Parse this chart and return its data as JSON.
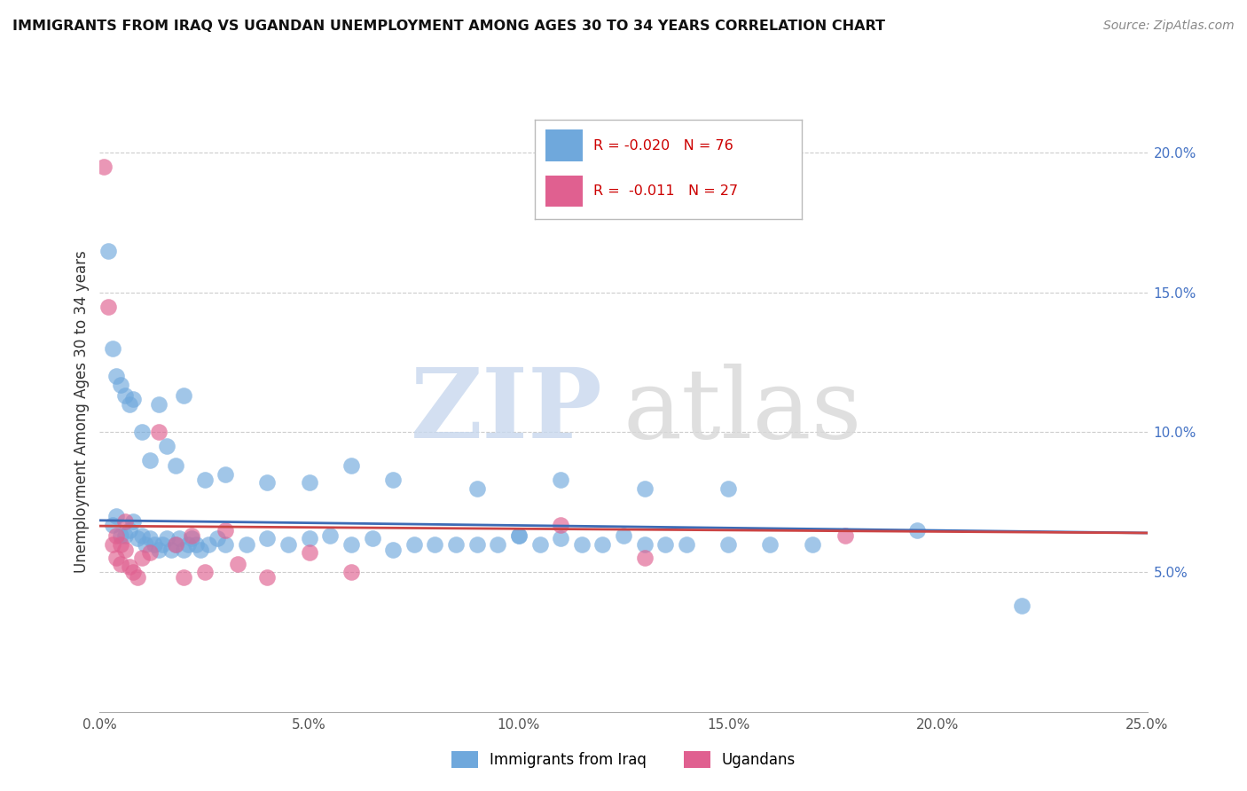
{
  "title": "IMMIGRANTS FROM IRAQ VS UGANDAN UNEMPLOYMENT AMONG AGES 30 TO 34 YEARS CORRELATION CHART",
  "source": "Source: ZipAtlas.com",
  "ylabel": "Unemployment Among Ages 30 to 34 years",
  "xlim": [
    0.0,
    0.25
  ],
  "ylim": [
    0.0,
    0.215
  ],
  "xticks": [
    0.0,
    0.05,
    0.1,
    0.15,
    0.2,
    0.25
  ],
  "xticklabels": [
    "0.0%",
    "5.0%",
    "10.0%",
    "15.0%",
    "20.0%",
    "25.0%"
  ],
  "yticks": [
    0.05,
    0.1,
    0.15,
    0.2
  ],
  "yticklabels": [
    "5.0%",
    "10.0%",
    "15.0%",
    "20.0%"
  ],
  "blue_color": "#6fa8dc",
  "pink_color": "#e06090",
  "blue_line_color": "#3d6bb5",
  "pink_line_color": "#cc4444",
  "legend_R1": "R = -0.020",
  "legend_N1": "N = 76",
  "legend_R2": "R =  -0.011",
  "legend_N2": "N = 27",
  "legend_label1": "Immigrants from Iraq",
  "legend_label2": "Ugandans",
  "blue_x": [
    0.003,
    0.004,
    0.005,
    0.006,
    0.007,
    0.008,
    0.009,
    0.01,
    0.011,
    0.012,
    0.013,
    0.014,
    0.015,
    0.016,
    0.017,
    0.018,
    0.019,
    0.02,
    0.021,
    0.022,
    0.023,
    0.024,
    0.026,
    0.028,
    0.03,
    0.035,
    0.04,
    0.045,
    0.05,
    0.055,
    0.06,
    0.065,
    0.07,
    0.075,
    0.08,
    0.085,
    0.09,
    0.095,
    0.1,
    0.105,
    0.11,
    0.115,
    0.12,
    0.125,
    0.13,
    0.135,
    0.14,
    0.15,
    0.16,
    0.17,
    0.002,
    0.003,
    0.004,
    0.005,
    0.006,
    0.007,
    0.008,
    0.01,
    0.012,
    0.014,
    0.016,
    0.018,
    0.02,
    0.025,
    0.03,
    0.04,
    0.05,
    0.06,
    0.07,
    0.09,
    0.1,
    0.11,
    0.13,
    0.15,
    0.195,
    0.22
  ],
  "blue_y": [
    0.067,
    0.07,
    0.063,
    0.063,
    0.065,
    0.068,
    0.062,
    0.063,
    0.06,
    0.062,
    0.06,
    0.058,
    0.06,
    0.062,
    0.058,
    0.06,
    0.062,
    0.058,
    0.06,
    0.062,
    0.06,
    0.058,
    0.06,
    0.062,
    0.06,
    0.06,
    0.062,
    0.06,
    0.062,
    0.063,
    0.06,
    0.062,
    0.058,
    0.06,
    0.06,
    0.06,
    0.06,
    0.06,
    0.063,
    0.06,
    0.062,
    0.06,
    0.06,
    0.063,
    0.06,
    0.06,
    0.06,
    0.06,
    0.06,
    0.06,
    0.165,
    0.13,
    0.12,
    0.117,
    0.113,
    0.11,
    0.112,
    0.1,
    0.09,
    0.11,
    0.095,
    0.088,
    0.113,
    0.083,
    0.085,
    0.082,
    0.082,
    0.088,
    0.083,
    0.08,
    0.063,
    0.083,
    0.08,
    0.08,
    0.065,
    0.038
  ],
  "pink_x": [
    0.001,
    0.002,
    0.003,
    0.004,
    0.004,
    0.005,
    0.005,
    0.006,
    0.006,
    0.007,
    0.008,
    0.009,
    0.01,
    0.012,
    0.014,
    0.018,
    0.02,
    0.022,
    0.025,
    0.03,
    0.033,
    0.04,
    0.05,
    0.06,
    0.11,
    0.13,
    0.178
  ],
  "pink_y": [
    0.195,
    0.145,
    0.06,
    0.063,
    0.055,
    0.06,
    0.053,
    0.068,
    0.058,
    0.052,
    0.05,
    0.048,
    0.055,
    0.057,
    0.1,
    0.06,
    0.048,
    0.063,
    0.05,
    0.065,
    0.053,
    0.048,
    0.057,
    0.05,
    0.067,
    0.055,
    0.063
  ],
  "blue_intercept": 0.0685,
  "blue_slope": -0.018,
  "pink_intercept": 0.0665,
  "pink_slope": -0.01
}
